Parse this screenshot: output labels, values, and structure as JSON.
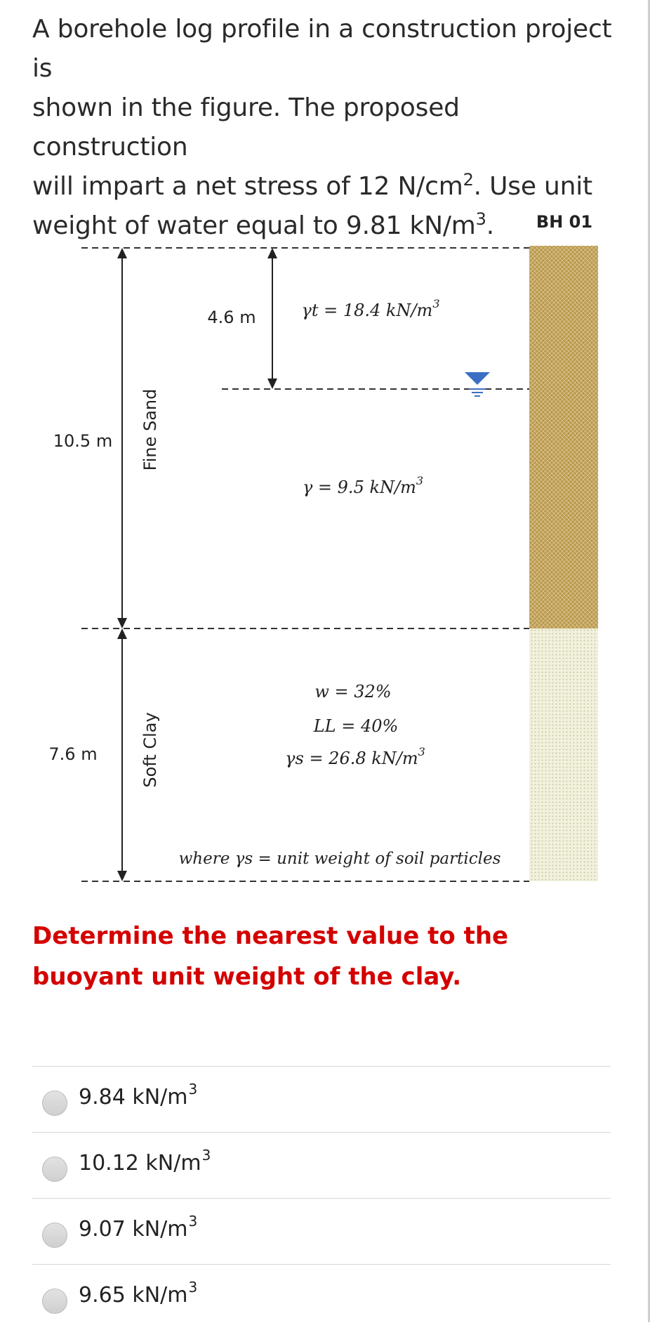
{
  "intro": {
    "line1": "A borehole log profile in a construction project is",
    "line2": "shown in the figure. The proposed construction",
    "line3_a": "will impart a net stress of 12 N/cm",
    "line3_sup": "2",
    "line3_b": ". Use unit",
    "line4_a": "weight of water equal to 9.81 kN/m",
    "line4_sup": "3",
    "line4_b": "."
  },
  "figure": {
    "borehole_label": "BH 01",
    "fine_sand": {
      "name": "Fine Sand",
      "thickness": "10.5 m",
      "water_table_depth": "4.6 m",
      "gamma_t": "γt = 18.4 kN/m",
      "gamma_sat": "γ = 9.5 kN/m"
    },
    "soft_clay": {
      "name": "Soft Clay",
      "thickness": "7.6 m",
      "w": "w = 32%",
      "LL": "LL = 40%",
      "gamma_s": "γs = 26.8 kN/m",
      "note": "where γs = unit weight of soil particles"
    },
    "cube_sup": "3",
    "colors": {
      "sand": "#b8974a",
      "clay": "#ecebd4",
      "water_marker": "#3b6fc4"
    }
  },
  "question": {
    "text": "Determine the nearest value to the buoyant unit weight of the clay."
  },
  "options": [
    {
      "value": "9.84 kN/m",
      "sup": "3"
    },
    {
      "value": "10.12 kN/m",
      "sup": "3"
    },
    {
      "value": "9.07 kN/m",
      "sup": "3"
    },
    {
      "value": "9.65 kN/m",
      "sup": "3"
    }
  ]
}
